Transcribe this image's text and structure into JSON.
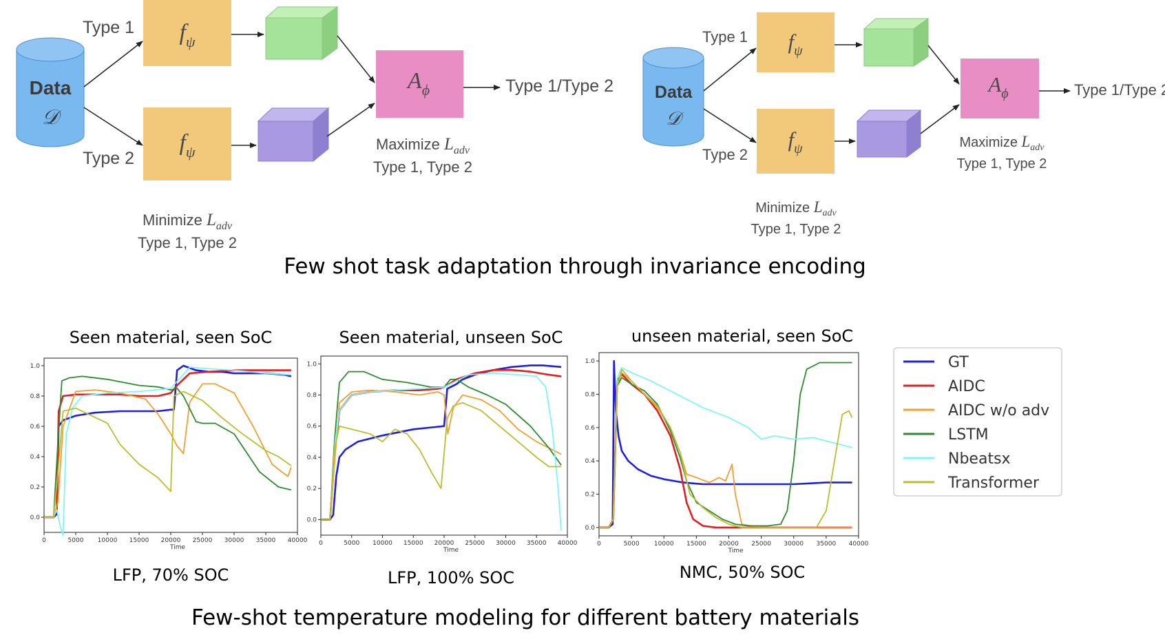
{
  "diagrams": [
    {
      "data_label": "Data",
      "data_symbol": "𝒟",
      "type1_label": "Type 1",
      "type2_label": "Type 2",
      "encoder_symbol": "f",
      "encoder_sub": "ψ",
      "adversary_symbol": "A",
      "adversary_sub": "ϕ",
      "output_label": "Type 1/Type 2",
      "max_prefix": "Maximize ",
      "max_types": "Type 1, Type 2",
      "min_prefix": "Minimize ",
      "min_types": "Type 1, Type 2",
      "loss_symbol": "L",
      "loss_sub": "adv"
    },
    {
      "data_label": "Data",
      "data_symbol": "𝒟",
      "type1_label": "Type 1",
      "type2_label": "Type 2",
      "encoder_symbol": "f",
      "encoder_sub": "ψ",
      "adversary_symbol": "A",
      "adversary_sub": "ϕ",
      "output_label": "Type 1/Type 2",
      "max_prefix": "Maximize ",
      "max_types": "Type 1, Type 2",
      "min_prefix": "Minimize ",
      "min_types": "Type 1, Type 2",
      "loss_symbol": "L",
      "loss_sub": "adv"
    }
  ],
  "colors": {
    "data": "#7ab8f0",
    "encoder": "#f2c97a",
    "feature1": "#a6e39a",
    "feature2": "#a999e3",
    "adversary": "#e88ec4"
  },
  "caption_top": "Few shot task adaptation through invariance encoding",
  "caption_bottom": "Few-shot temperature modeling for different battery materials",
  "legend": [
    {
      "name": "GT",
      "color": "#1f1fe0"
    },
    {
      "name": "AIDC",
      "color": "#e02020"
    },
    {
      "name": "AIDC w/o adv",
      "color": "#f0a030"
    },
    {
      "name": "LSTM",
      "color": "#2e8a2e"
    },
    {
      "name": "Nbeatsx",
      "color": "#7ff5f5"
    },
    {
      "name": "Transformer",
      "color": "#bcbc30"
    }
  ],
  "chart_data": [
    {
      "type": "line",
      "title": "Seen material, seen SoC",
      "subtitle": "LFP, 70% SOC",
      "xlabel": "Time",
      "ylabel": "",
      "xlim": [
        0,
        40000
      ],
      "ylim": [
        -0.1,
        1.05
      ],
      "xticks": [
        "0",
        "5000",
        "10000",
        "15000",
        "20000",
        "25000",
        "30000",
        "35000",
        "40000"
      ],
      "yticks": [
        "0.0",
        "0.2",
        "0.4",
        "0.6",
        "0.8",
        "1.0"
      ],
      "series": [
        {
          "name": "GT",
          "x": [
            0,
            1500,
            2000,
            2300,
            3000,
            5000,
            8000,
            12000,
            15000,
            18000,
            20000,
            20500,
            21000,
            22000,
            24000,
            26000,
            28000,
            30000,
            32000,
            35000,
            38000,
            39000
          ],
          "y": [
            0.0,
            0.0,
            0.02,
            0.6,
            0.64,
            0.67,
            0.69,
            0.7,
            0.7,
            0.7,
            0.71,
            0.71,
            0.97,
            1.0,
            0.97,
            0.96,
            0.96,
            0.95,
            0.95,
            0.95,
            0.94,
            0.93
          ]
        },
        {
          "name": "AIDC",
          "x": [
            0,
            1500,
            2000,
            2300,
            3000,
            5000,
            8000,
            12000,
            15000,
            18000,
            20000,
            21000,
            23000,
            26000,
            30000,
            34000,
            39000
          ],
          "y": [
            0.0,
            0.0,
            0.05,
            0.7,
            0.8,
            0.81,
            0.81,
            0.81,
            0.8,
            0.8,
            0.82,
            0.87,
            0.95,
            0.96,
            0.97,
            0.97,
            0.97
          ]
        },
        {
          "name": "AIDC w/o adv",
          "x": [
            0,
            1500,
            2200,
            3000,
            5000,
            8000,
            12000,
            16000,
            18000,
            20000,
            21000,
            22000,
            23000,
            25000,
            27000,
            30000,
            33000,
            36000,
            37500,
            38500,
            39000
          ],
          "y": [
            0.0,
            0.0,
            0.1,
            0.6,
            0.83,
            0.84,
            0.82,
            0.78,
            0.68,
            0.55,
            0.47,
            0.42,
            0.76,
            0.88,
            0.88,
            0.82,
            0.6,
            0.35,
            0.3,
            0.27,
            0.33
          ]
        },
        {
          "name": "LSTM",
          "x": [
            0,
            1500,
            2200,
            2800,
            4000,
            6000,
            10000,
            15000,
            18000,
            20000,
            21000,
            22000,
            24000,
            25000,
            27000,
            30000,
            34000,
            37000,
            39000
          ],
          "y": [
            0.0,
            0.0,
            0.5,
            0.9,
            0.92,
            0.93,
            0.91,
            0.87,
            0.86,
            0.84,
            0.85,
            0.8,
            0.63,
            0.62,
            0.62,
            0.55,
            0.3,
            0.2,
            0.18
          ]
        },
        {
          "name": "Nbeatsx",
          "x": [
            0,
            1500,
            2000,
            2500,
            3000,
            3500,
            4500,
            6000,
            10000,
            15000,
            20000,
            23000,
            26000,
            30000,
            35000,
            39000
          ],
          "y": [
            0.0,
            0.0,
            0.05,
            -0.05,
            -0.12,
            0.55,
            0.72,
            0.8,
            0.82,
            0.83,
            0.85,
            0.99,
            0.98,
            0.97,
            0.95,
            0.94
          ]
        },
        {
          "name": "Transformer",
          "x": [
            0,
            1500,
            2200,
            3000,
            5000,
            8000,
            10000,
            12000,
            15000,
            18000,
            20000,
            20500,
            22000,
            25000,
            28000,
            31000,
            35000,
            37000,
            39000
          ],
          "y": [
            0.0,
            0.0,
            0.3,
            0.7,
            0.72,
            0.66,
            0.62,
            0.48,
            0.35,
            0.26,
            0.17,
            0.8,
            0.83,
            0.77,
            0.66,
            0.56,
            0.44,
            0.4,
            0.34
          ]
        }
      ]
    },
    {
      "type": "line",
      "title": "Seen material, unseen SoC",
      "subtitle": "LFP, 100% SOC",
      "xlabel": "Time",
      "ylabel": "",
      "xlim": [
        0,
        40000
      ],
      "ylim": [
        -0.1,
        1.05
      ],
      "xticks": [
        "0",
        "5000",
        "10000",
        "15000",
        "20000",
        "25000",
        "30000",
        "35000",
        "40000"
      ],
      "yticks": [
        "0.0",
        "0.2",
        "0.4",
        "0.6",
        "0.8",
        "1.0"
      ],
      "series": [
        {
          "name": "GT",
          "x": [
            0,
            1500,
            2000,
            2500,
            3000,
            4000,
            6000,
            10000,
            15000,
            20000,
            20500,
            21000,
            22000,
            23000,
            25000,
            28000,
            31000,
            34000,
            36000,
            39000
          ],
          "y": [
            0.0,
            0.0,
            0.03,
            0.28,
            0.4,
            0.45,
            0.5,
            0.54,
            0.58,
            0.6,
            0.84,
            0.85,
            0.87,
            0.9,
            0.93,
            0.96,
            0.98,
            0.99,
            0.99,
            0.98
          ]
        },
        {
          "name": "AIDC",
          "x": [
            0,
            1500,
            2300,
            3000,
            5000,
            8000,
            12000,
            16000,
            19000,
            20000,
            22000,
            25000,
            28000,
            31000,
            34000,
            37000,
            39000
          ],
          "y": [
            0.0,
            0.0,
            0.45,
            0.7,
            0.8,
            0.82,
            0.83,
            0.83,
            0.84,
            0.85,
            0.9,
            0.94,
            0.96,
            0.96,
            0.95,
            0.93,
            0.92
          ]
        },
        {
          "name": "AIDC w/o adv",
          "x": [
            0,
            1500,
            2300,
            3000,
            5000,
            8000,
            12000,
            16000,
            19000,
            20000,
            20600,
            21500,
            23000,
            26000,
            29000,
            32000,
            35000,
            37500,
            39000
          ],
          "y": [
            0.0,
            0.0,
            0.4,
            0.75,
            0.82,
            0.83,
            0.82,
            0.8,
            0.82,
            0.8,
            0.55,
            0.72,
            0.8,
            0.77,
            0.7,
            0.58,
            0.5,
            0.45,
            0.42
          ]
        },
        {
          "name": "LSTM",
          "x": [
            0,
            1500,
            2200,
            3000,
            4500,
            7000,
            10000,
            14000,
            18000,
            20000,
            21000,
            22000,
            24000,
            27000,
            30000,
            34000,
            37000,
            39000
          ],
          "y": [
            0.0,
            0.0,
            0.5,
            0.88,
            0.95,
            0.95,
            0.9,
            0.88,
            0.85,
            0.85,
            0.9,
            0.9,
            0.85,
            0.8,
            0.74,
            0.6,
            0.46,
            0.35
          ]
        },
        {
          "name": "Nbeatsx",
          "x": [
            0,
            1500,
            2300,
            3000,
            5000,
            8000,
            12000,
            16000,
            20000,
            24000,
            28000,
            32000,
            35000,
            36500,
            37500,
            38500,
            39000
          ],
          "y": [
            0.0,
            0.0,
            0.5,
            0.7,
            0.8,
            0.82,
            0.83,
            0.84,
            0.85,
            0.93,
            0.94,
            0.93,
            0.92,
            0.85,
            0.6,
            0.2,
            -0.07
          ]
        },
        {
          "name": "Transformer",
          "x": [
            0,
            1500,
            2200,
            3000,
            5000,
            8000,
            10000,
            12000,
            14000,
            16000,
            18000,
            19500,
            20500,
            21500,
            23000,
            26000,
            29000,
            32000,
            35000,
            37000,
            39000
          ],
          "y": [
            0.0,
            0.0,
            0.45,
            0.6,
            0.58,
            0.55,
            0.5,
            0.58,
            0.55,
            0.45,
            0.3,
            0.2,
            0.65,
            0.73,
            0.75,
            0.7,
            0.6,
            0.5,
            0.4,
            0.34,
            0.34
          ]
        }
      ]
    },
    {
      "type": "line",
      "title": "unseen material, seen SoC",
      "subtitle": "NMC, 50% SOC",
      "xlabel": "Time",
      "ylabel": "",
      "xlim": [
        0,
        40000
      ],
      "ylim": [
        -0.05,
        1.05
      ],
      "xticks": [
        "0",
        "5000",
        "10000",
        "15000",
        "20000",
        "25000",
        "30000",
        "35000",
        "40000"
      ],
      "yticks": [
        "0.0",
        "0.2",
        "0.4",
        "0.6",
        "0.8",
        "1.0"
      ],
      "series": [
        {
          "name": "GT",
          "x": [
            0,
            1500,
            2100,
            2300,
            2600,
            3000,
            3500,
            4500,
            6000,
            8000,
            10000,
            13000,
            16000,
            20000,
            25000,
            30000,
            35000,
            39000
          ],
          "y": [
            0.0,
            0.0,
            0.02,
            1.0,
            0.7,
            0.55,
            0.46,
            0.4,
            0.35,
            0.31,
            0.29,
            0.27,
            0.26,
            0.26,
            0.26,
            0.26,
            0.27,
            0.27
          ]
        },
        {
          "name": "AIDC",
          "x": [
            0,
            1500,
            2200,
            2800,
            3500,
            5000,
            7000,
            9000,
            11000,
            12500,
            13500,
            14500,
            16000,
            18000,
            20000,
            25000,
            30000,
            39000
          ],
          "y": [
            0.0,
            0.0,
            0.05,
            0.88,
            0.92,
            0.86,
            0.8,
            0.7,
            0.55,
            0.35,
            0.15,
            0.05,
            0.01,
            0.0,
            0.0,
            0.0,
            0.0,
            0.0
          ]
        },
        {
          "name": "AIDC w/o adv",
          "x": [
            0,
            1500,
            2200,
            2800,
            3500,
            5000,
            7000,
            9000,
            11000,
            12500,
            13500,
            15000,
            17000,
            18500,
            19500,
            20500,
            21000,
            22000,
            25000,
            30000,
            39000
          ],
          "y": [
            0.0,
            0.0,
            0.05,
            0.85,
            0.93,
            0.88,
            0.8,
            0.72,
            0.6,
            0.45,
            0.32,
            0.3,
            0.27,
            0.3,
            0.28,
            0.38,
            0.2,
            0.02,
            0.0,
            0.0,
            0.0
          ]
        },
        {
          "name": "LSTM",
          "x": [
            0,
            1500,
            2200,
            2800,
            3500,
            5000,
            7000,
            9000,
            11000,
            12500,
            13500,
            15000,
            17000,
            19000,
            21000,
            23000,
            26000,
            28000,
            29000,
            30000,
            31000,
            32000,
            34000,
            37000,
            39000
          ],
          "y": [
            0.0,
            0.0,
            0.05,
            0.85,
            0.9,
            0.86,
            0.82,
            0.74,
            0.58,
            0.42,
            0.28,
            0.15,
            0.1,
            0.05,
            0.02,
            0.01,
            0.01,
            0.02,
            0.1,
            0.4,
            0.8,
            0.95,
            0.99,
            0.99,
            0.99
          ]
        },
        {
          "name": "Nbeatsx",
          "x": [
            0,
            1500,
            2200,
            2800,
            3500,
            5000,
            8000,
            12000,
            16000,
            20000,
            23000,
            25000,
            27000,
            30000,
            33000,
            36000,
            39000
          ],
          "y": [
            0.0,
            0.0,
            0.05,
            0.9,
            0.96,
            0.93,
            0.88,
            0.8,
            0.72,
            0.66,
            0.6,
            0.53,
            0.55,
            0.53,
            0.54,
            0.51,
            0.48
          ]
        },
        {
          "name": "Transformer",
          "x": [
            0,
            1500,
            2200,
            2800,
            3500,
            5000,
            7000,
            9000,
            11000,
            12500,
            14000,
            16000,
            18000,
            20000,
            22000,
            25000,
            30000,
            32000,
            33500,
            35000,
            36500,
            37500,
            38500,
            39000
          ],
          "y": [
            0.0,
            0.0,
            0.05,
            0.85,
            0.95,
            0.88,
            0.8,
            0.73,
            0.6,
            0.45,
            0.2,
            0.12,
            0.06,
            0.02,
            0.0,
            0.0,
            0.0,
            0.0,
            0.0,
            0.1,
            0.45,
            0.68,
            0.7,
            0.66
          ]
        }
      ]
    }
  ]
}
